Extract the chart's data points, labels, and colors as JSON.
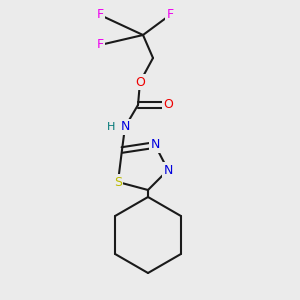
{
  "background_color": "#ebebeb",
  "bond_color": "#1a1a1a",
  "bond_width": 1.5,
  "atom_colors": {
    "F": "#ee00ee",
    "O": "#ee0000",
    "N": "#0000dd",
    "S": "#bbbb00",
    "H": "#007777",
    "C": "#1a1a1a"
  },
  "font_size": 9.0,
  "fig_width": 3.0,
  "fig_height": 3.0,
  "dpi": 100
}
